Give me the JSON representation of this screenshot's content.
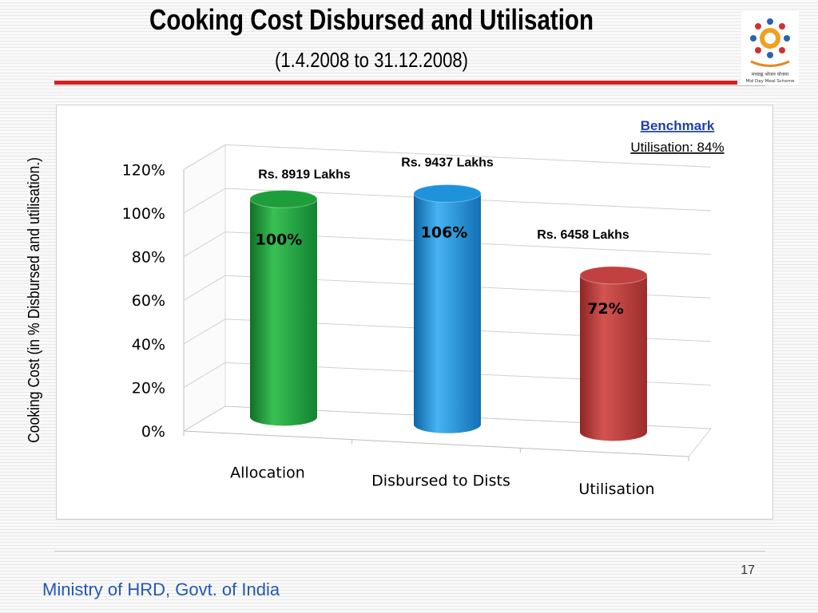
{
  "slide": {
    "title": "Cooking Cost Disbursed and Utilisation",
    "subtitle": "(1.4.2008 to 31.12.2008)",
    "page_number": "17",
    "footer": "Ministry of HRD, Govt. of India",
    "logo_caption_1": "मध्याह्न भोजन योजना",
    "logo_caption_2": "Mid Day Meal Scheme"
  },
  "chart_data": {
    "type": "bar",
    "title": "",
    "ylabel": "Cooking Cost (in % Disbursed and utilisation.)",
    "xlabel": "",
    "ylim": [
      0,
      120
    ],
    "yticks": [
      "0%",
      "20%",
      "40%",
      "60%",
      "80%",
      "100%",
      "120%"
    ],
    "grid": true,
    "legend": "none",
    "categories": [
      "Allocation",
      "Disbursed to Dists",
      "Utilisation"
    ],
    "values": [
      100,
      106,
      72
    ],
    "value_labels": [
      "100%",
      "106%",
      "72%"
    ],
    "amount_labels": [
      "Rs. 8919 Lakhs",
      "Rs. 9437 Lakhs",
      "Rs. 6458 Lakhs"
    ],
    "colors": [
      "#1d9e3a",
      "#1e93dc",
      "#c0413f"
    ],
    "benchmark": {
      "line1": "Benchmark",
      "line2": "Utilisation: 84%"
    }
  }
}
